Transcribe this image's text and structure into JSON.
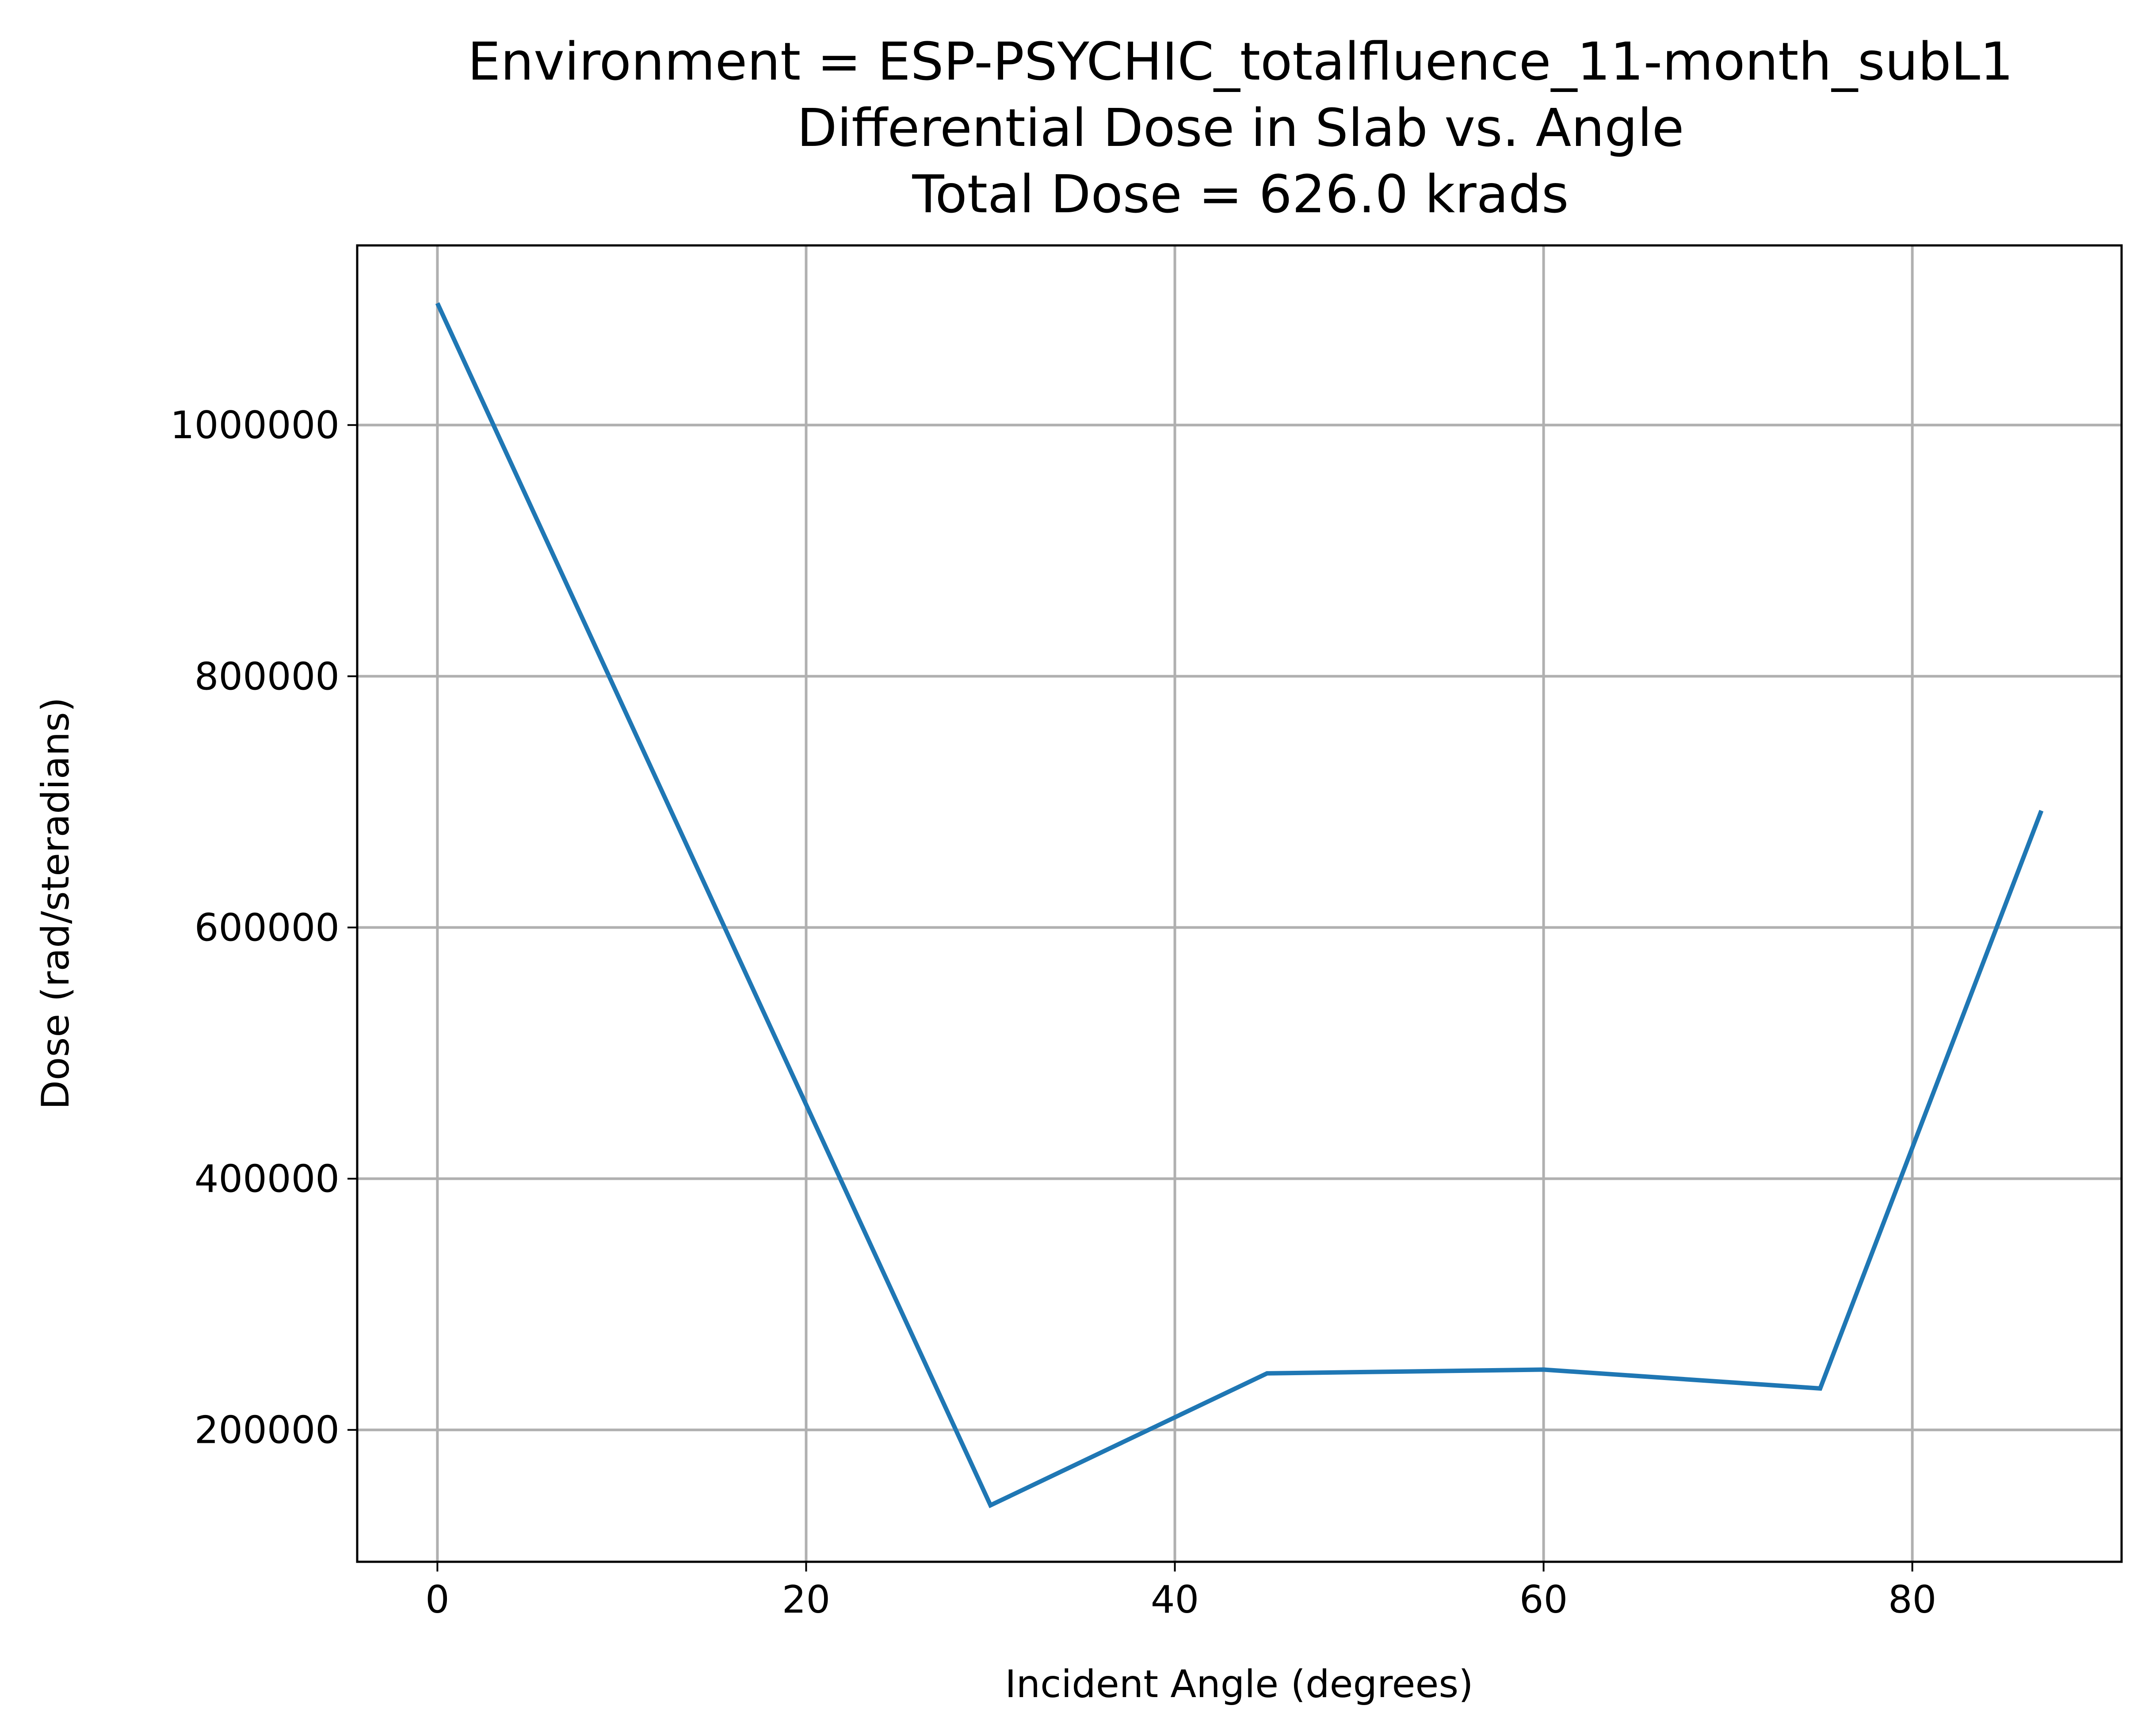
{
  "chart_data": {
    "type": "line",
    "title": [
      "Environment = ESP-PSYCHIC_totalfluence_11-month_subL1",
      "Differential Dose in Slab vs. Angle",
      "Total Dose = 626.0 krads"
    ],
    "xlabel": "Incident Angle (degrees)",
    "ylabel": "Dose (rad/steradians)",
    "xlim": [
      -4.35,
      91.35
    ],
    "ylim": [
      95000,
      1143000
    ],
    "xticks": [
      0,
      20,
      40,
      60,
      80
    ],
    "yticks": [
      200000,
      400000,
      600000,
      800000,
      1000000
    ],
    "xtick_labels": [
      "0",
      "20",
      "40",
      "60",
      "80"
    ],
    "ytick_labels": [
      "200000",
      "400000",
      "600000",
      "800000",
      "1000000"
    ],
    "grid": true,
    "series": [
      {
        "color": "#1f77b4",
        "x": [
          0,
          30,
          45,
          60,
          75,
          87
        ],
        "y": [
          1097000,
          140000,
          245000,
          248000,
          233000,
          693000
        ]
      }
    ]
  }
}
